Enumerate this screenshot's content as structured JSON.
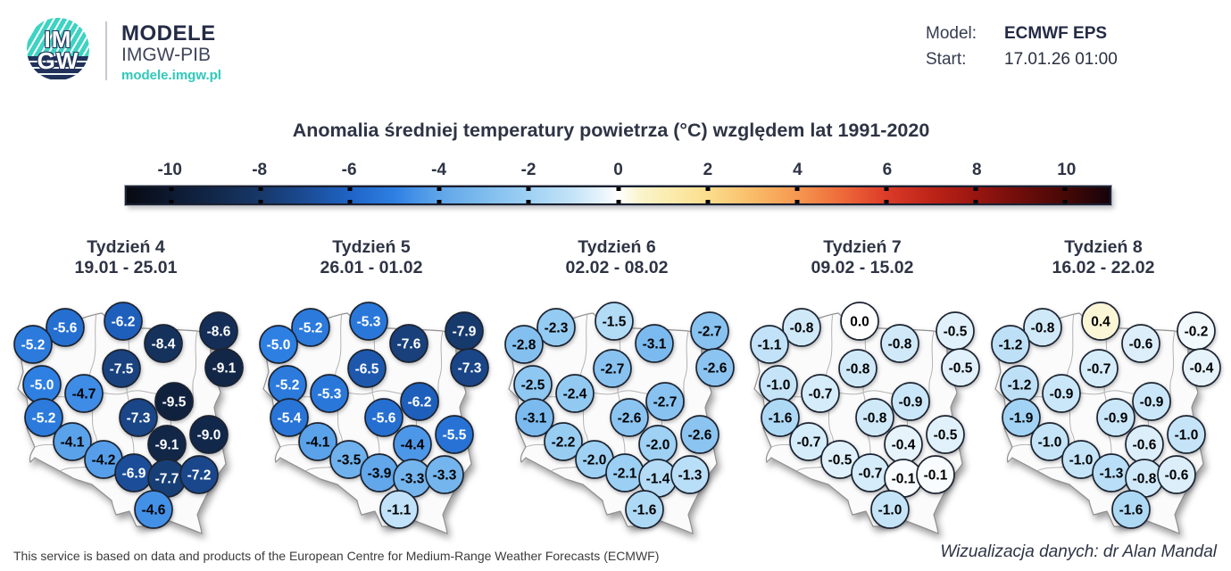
{
  "header": {
    "logo": {
      "im": "IM",
      "gw": "GW",
      "title": "MODELE",
      "subtitle": "IMGW-PIB",
      "url": "modele.imgw.pl"
    },
    "model": {
      "label": "Model:",
      "value": "ECMWF EPS"
    },
    "start": {
      "label": "Start:",
      "value": "17.01.26 01:00"
    }
  },
  "title": "Anomalia średniej temperatury powietrza (°C) względem lat 1991-2020",
  "footer": {
    "left": "This service is based on data and products of the European Centre for Medium-Range Weather Forecasts (ECMWF)",
    "right": "Wizualizacja danych: dr Alan Mandal"
  },
  "brand_colors": {
    "teal": "#2fc9ba",
    "navy": "#242b45",
    "text": "#2e3444"
  },
  "chart_data": {
    "type": "heatmap",
    "subtype": "poland-weekly-temperature-anomaly-maps",
    "title": "Anomalia średniej temperatury powietrza (°C) względem lat 1991-2020",
    "unit": "°C",
    "reference_period": "1991-2020",
    "colorbar": {
      "ticks": [
        -10,
        -8,
        -6,
        -4,
        -2,
        0,
        2,
        4,
        6,
        8,
        10
      ],
      "range": [
        -11,
        11
      ],
      "stops": [
        [
          -11,
          [
            8,
            10,
            18
          ]
        ],
        [
          -10,
          [
            13,
            25,
            48
          ]
        ],
        [
          -9,
          [
            18,
            40,
            75
          ]
        ],
        [
          -8,
          [
            23,
            56,
            105
          ]
        ],
        [
          -7,
          [
            27,
            75,
            148
          ]
        ],
        [
          -6,
          [
            31,
            100,
            198
          ]
        ],
        [
          -5,
          [
            46,
            127,
            226
          ]
        ],
        [
          -4.5,
          [
            72,
            148,
            232
          ]
        ],
        [
          -4,
          [
            95,
            165,
            233
          ]
        ],
        [
          -3,
          [
            126,
            188,
            238
          ]
        ],
        [
          -2,
          [
            158,
            209,
            243
          ]
        ],
        [
          -1,
          [
            197,
            228,
            248
          ]
        ],
        [
          -0.3,
          [
            235,
            246,
            252
          ]
        ],
        [
          0,
          [
            255,
            255,
            255
          ]
        ],
        [
          0.5,
          [
            250,
            244,
            204
          ]
        ],
        [
          1,
          [
            251,
            238,
            180
          ]
        ],
        [
          2,
          [
            251,
            222,
            141
          ]
        ],
        [
          3,
          [
            249,
            188,
            105
          ]
        ],
        [
          4,
          [
            245,
            152,
            80
          ]
        ],
        [
          5,
          [
            238,
            106,
            58
          ]
        ],
        [
          6,
          [
            220,
            59,
            40
          ]
        ],
        [
          7,
          [
            189,
            36,
            24
          ]
        ],
        [
          8,
          [
            154,
            21,
            16
          ]
        ],
        [
          9,
          [
            111,
            13,
            10
          ]
        ],
        [
          10,
          [
            71,
            8,
            6
          ]
        ],
        [
          11,
          [
            22,
            3,
            10
          ]
        ]
      ]
    },
    "station_positions": [
      [
        61,
        31
      ],
      [
        126,
        24
      ],
      [
        171,
        49
      ],
      [
        233,
        35
      ],
      [
        25,
        50
      ],
      [
        124,
        77
      ],
      [
        239,
        76
      ],
      [
        35,
        95
      ],
      [
        82,
        105
      ],
      [
        183,
        114
      ],
      [
        37,
        132
      ],
      [
        143,
        132
      ],
      [
        69,
        159
      ],
      [
        175,
        162
      ],
      [
        222,
        151
      ],
      [
        104,
        179
      ],
      [
        138,
        194
      ],
      [
        175,
        200
      ],
      [
        211,
        196
      ],
      [
        160,
        235
      ]
    ],
    "text_color_rule": {
      "white_text_at_or_below": -4.9
    },
    "weeks": [
      {
        "label": "Tydzień 4",
        "dates": "19.01 - 25.01",
        "values": [
          -5.6,
          -6.2,
          -8.4,
          -8.6,
          -5.2,
          -7.5,
          -9.1,
          -5.0,
          -4.7,
          -9.5,
          -5.2,
          -7.3,
          -4.1,
          -9.1,
          -9.0,
          -4.2,
          -6.9,
          -7.7,
          -7.2,
          -4.6
        ]
      },
      {
        "label": "Tydzień 5",
        "dates": "26.01 - 01.02",
        "values": [
          -5.2,
          -5.3,
          -7.6,
          -7.9,
          -5.0,
          -6.5,
          -7.3,
          -5.2,
          -5.3,
          -6.2,
          -5.4,
          -5.6,
          -4.1,
          -4.4,
          -5.5,
          -3.5,
          -3.9,
          -3.3,
          -3.3,
          -1.1
        ]
      },
      {
        "label": "Tydzień 6",
        "dates": "02.02 - 08.02",
        "values": [
          -2.3,
          -1.5,
          -3.1,
          -2.7,
          -2.8,
          -2.7,
          -2.6,
          -2.5,
          -2.4,
          -2.7,
          -3.1,
          -2.6,
          -2.2,
          -2.0,
          -2.6,
          -2.0,
          -2.1,
          -1.4,
          -1.3,
          -1.6
        ]
      },
      {
        "label": "Tydzień 7",
        "dates": "09.02 - 15.02",
        "values": [
          -0.8,
          0.0,
          -0.8,
          -0.5,
          -1.1,
          -0.8,
          -0.5,
          -1.0,
          -0.7,
          -0.9,
          -1.6,
          -0.8,
          -0.7,
          -0.4,
          -0.5,
          -0.5,
          -0.7,
          -0.1,
          -0.1,
          -1.0
        ]
      },
      {
        "label": "Tydzień 8",
        "dates": "16.02 - 22.02",
        "values": [
          -0.8,
          0.4,
          -0.6,
          -0.2,
          -1.2,
          -0.7,
          -0.4,
          -1.2,
          -0.9,
          -0.9,
          -1.9,
          -0.9,
          -1.0,
          -0.6,
          -1.0,
          -1.0,
          -1.3,
          -0.8,
          -0.6,
          -1.6
        ]
      }
    ]
  }
}
